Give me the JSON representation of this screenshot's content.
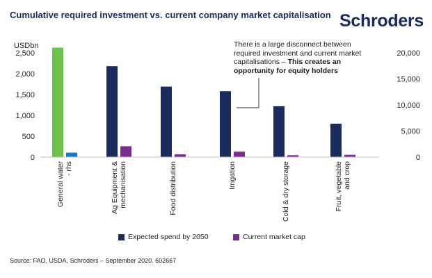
{
  "brand": "Schroders",
  "chart_data": {
    "type": "bar",
    "title": "Cumulative required investment vs. current company market capitalisation",
    "ylabel_left": "USDbn",
    "ylim_left": [
      0,
      2500
    ],
    "yticks_left": [
      "2,500",
      "2,000",
      "1,500",
      "1,000",
      "500",
      "0"
    ],
    "ylim_right": [
      0,
      20000
    ],
    "yticks_right": [
      "20,000",
      "15,000",
      "10,000",
      "5,000",
      "0"
    ],
    "categories": [
      [
        "General water",
        "- rhs"
      ],
      [
        "Ag Equipment &",
        "mechanisation"
      ],
      [
        "Food distribution"
      ],
      [
        "Irrigation"
      ],
      [
        "Cold & dry storage"
      ],
      [
        "Fruit, vegetable",
        "and crop"
      ]
    ],
    "series": [
      {
        "name": "Expected spend by 2050",
        "color": "#1a2b5c",
        "values": [
          null,
          2180,
          1690,
          1580,
          1220,
          800
        ]
      },
      {
        "name": "Current market cap",
        "color": "#7b2d8e",
        "values": [
          null,
          260,
          65,
          130,
          45,
          55
        ]
      }
    ],
    "rhs_bars": {
      "category_index": 0,
      "expected_color": "#6cc24a",
      "market_color": "#1a7bc4",
      "expected_value": 21000,
      "market_value": 850
    },
    "annotation_text": "There is a large disconnect between required investment and current market capitalisations – ",
    "annotation_bold": "This creates an opportunity for equity holders",
    "legend": [
      "Expected spend by 2050",
      "Current market cap"
    ],
    "source": "Source: FAO, USDA, Schroders – September 2020. 602667"
  }
}
